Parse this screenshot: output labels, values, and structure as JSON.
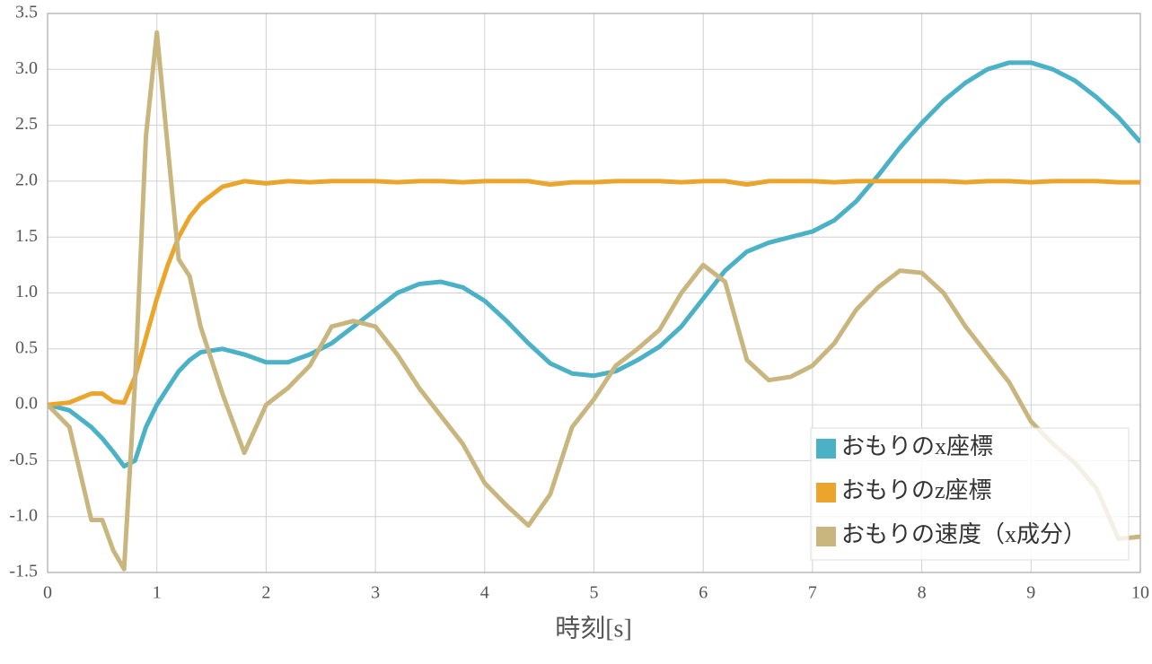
{
  "chart_data": {
    "type": "line",
    "x_label": "時刻[s]",
    "x": [
      0,
      0.2,
      0.4,
      0.5,
      0.6,
      0.7,
      0.8,
      0.9,
      1,
      1.1,
      1.2,
      1.3,
      1.4,
      1.6,
      1.8,
      2,
      2.2,
      2.4,
      2.6,
      2.8,
      3,
      3.2,
      3.4,
      3.6,
      3.8,
      4,
      4.2,
      4.4,
      4.6,
      4.8,
      5,
      5.2,
      5.4,
      5.6,
      5.8,
      6,
      6.2,
      6.4,
      6.6,
      6.8,
      7,
      7.2,
      7.4,
      7.6,
      7.8,
      8,
      8.2,
      8.4,
      8.6,
      8.8,
      9,
      9.2,
      9.4,
      9.6,
      9.8,
      10
    ],
    "series": [
      {
        "name": "おもりのx座標",
        "color": "#4bb1c6",
        "values": [
          0,
          -0.05,
          -0.2,
          -0.3,
          -0.42,
          -0.55,
          -0.5,
          -0.2,
          0,
          0.15,
          0.3,
          0.4,
          0.47,
          0.5,
          0.45,
          0.38,
          0.38,
          0.45,
          0.55,
          0.7,
          0.85,
          1.0,
          1.08,
          1.1,
          1.05,
          0.93,
          0.75,
          0.55,
          0.37,
          0.28,
          0.26,
          0.3,
          0.4,
          0.52,
          0.7,
          0.95,
          1.2,
          1.37,
          1.45,
          1.5,
          1.55,
          1.65,
          1.82,
          2.05,
          2.3,
          2.52,
          2.72,
          2.88,
          3.0,
          3.06,
          3.06,
          3.0,
          2.9,
          2.75,
          2.57,
          2.35
        ]
      },
      {
        "name": "おもりのz座標",
        "color": "#eba52d",
        "values": [
          0,
          0.02,
          0.1,
          0.1,
          0.03,
          0.02,
          0.25,
          0.6,
          0.95,
          1.25,
          1.5,
          1.68,
          1.8,
          1.95,
          2.0,
          1.98,
          2.0,
          1.99,
          2.0,
          2.0,
          2.0,
          1.99,
          2.0,
          2.0,
          1.99,
          2.0,
          2.0,
          2.0,
          1.97,
          1.99,
          1.99,
          2.0,
          2.0,
          2.0,
          1.99,
          2.0,
          2.0,
          1.97,
          2.0,
          2.0,
          2.0,
          1.99,
          2.0,
          2.0,
          2.0,
          2.0,
          2.0,
          1.99,
          2.0,
          2.0,
          1.99,
          2.0,
          2.0,
          2.0,
          1.99,
          1.99
        ]
      },
      {
        "name": "おもりの速度（x成分）",
        "color": "#c9b67f",
        "values": [
          0,
          -0.2,
          -1.03,
          -1.03,
          -1.3,
          -1.47,
          0.2,
          2.4,
          3.33,
          2.3,
          1.3,
          1.15,
          0.7,
          0.1,
          -0.43,
          0,
          0.15,
          0.35,
          0.7,
          0.75,
          0.7,
          0.45,
          0.15,
          -0.1,
          -0.35,
          -0.7,
          -0.9,
          -1.08,
          -0.8,
          -0.2,
          0.05,
          0.35,
          0.5,
          0.67,
          1.0,
          1.25,
          1.1,
          0.4,
          0.22,
          0.25,
          0.35,
          0.55,
          0.85,
          1.05,
          1.2,
          1.18,
          1.0,
          0.7,
          0.45,
          0.2,
          -0.15,
          -0.35,
          -0.52,
          -0.75,
          -1.2,
          -1.18
        ]
      }
    ],
    "xlim": [
      0,
      10
    ],
    "xticks": [
      0,
      1,
      2,
      3,
      4,
      5,
      6,
      7,
      8,
      9,
      10
    ],
    "ylim": [
      -1.5,
      3.5
    ],
    "yticks": [
      -1.5,
      {
        "value": -1,
        "label": "-1.0"
      },
      -0.5,
      {
        "value": 0,
        "label": "0.0"
      },
      0.5,
      {
        "value": 1,
        "label": "1.0"
      },
      1.5,
      {
        "value": 2,
        "label": "2.0"
      },
      2.5,
      {
        "value": 3,
        "label": "3.0"
      },
      3.5
    ],
    "grid": true,
    "legend": "lower right"
  }
}
